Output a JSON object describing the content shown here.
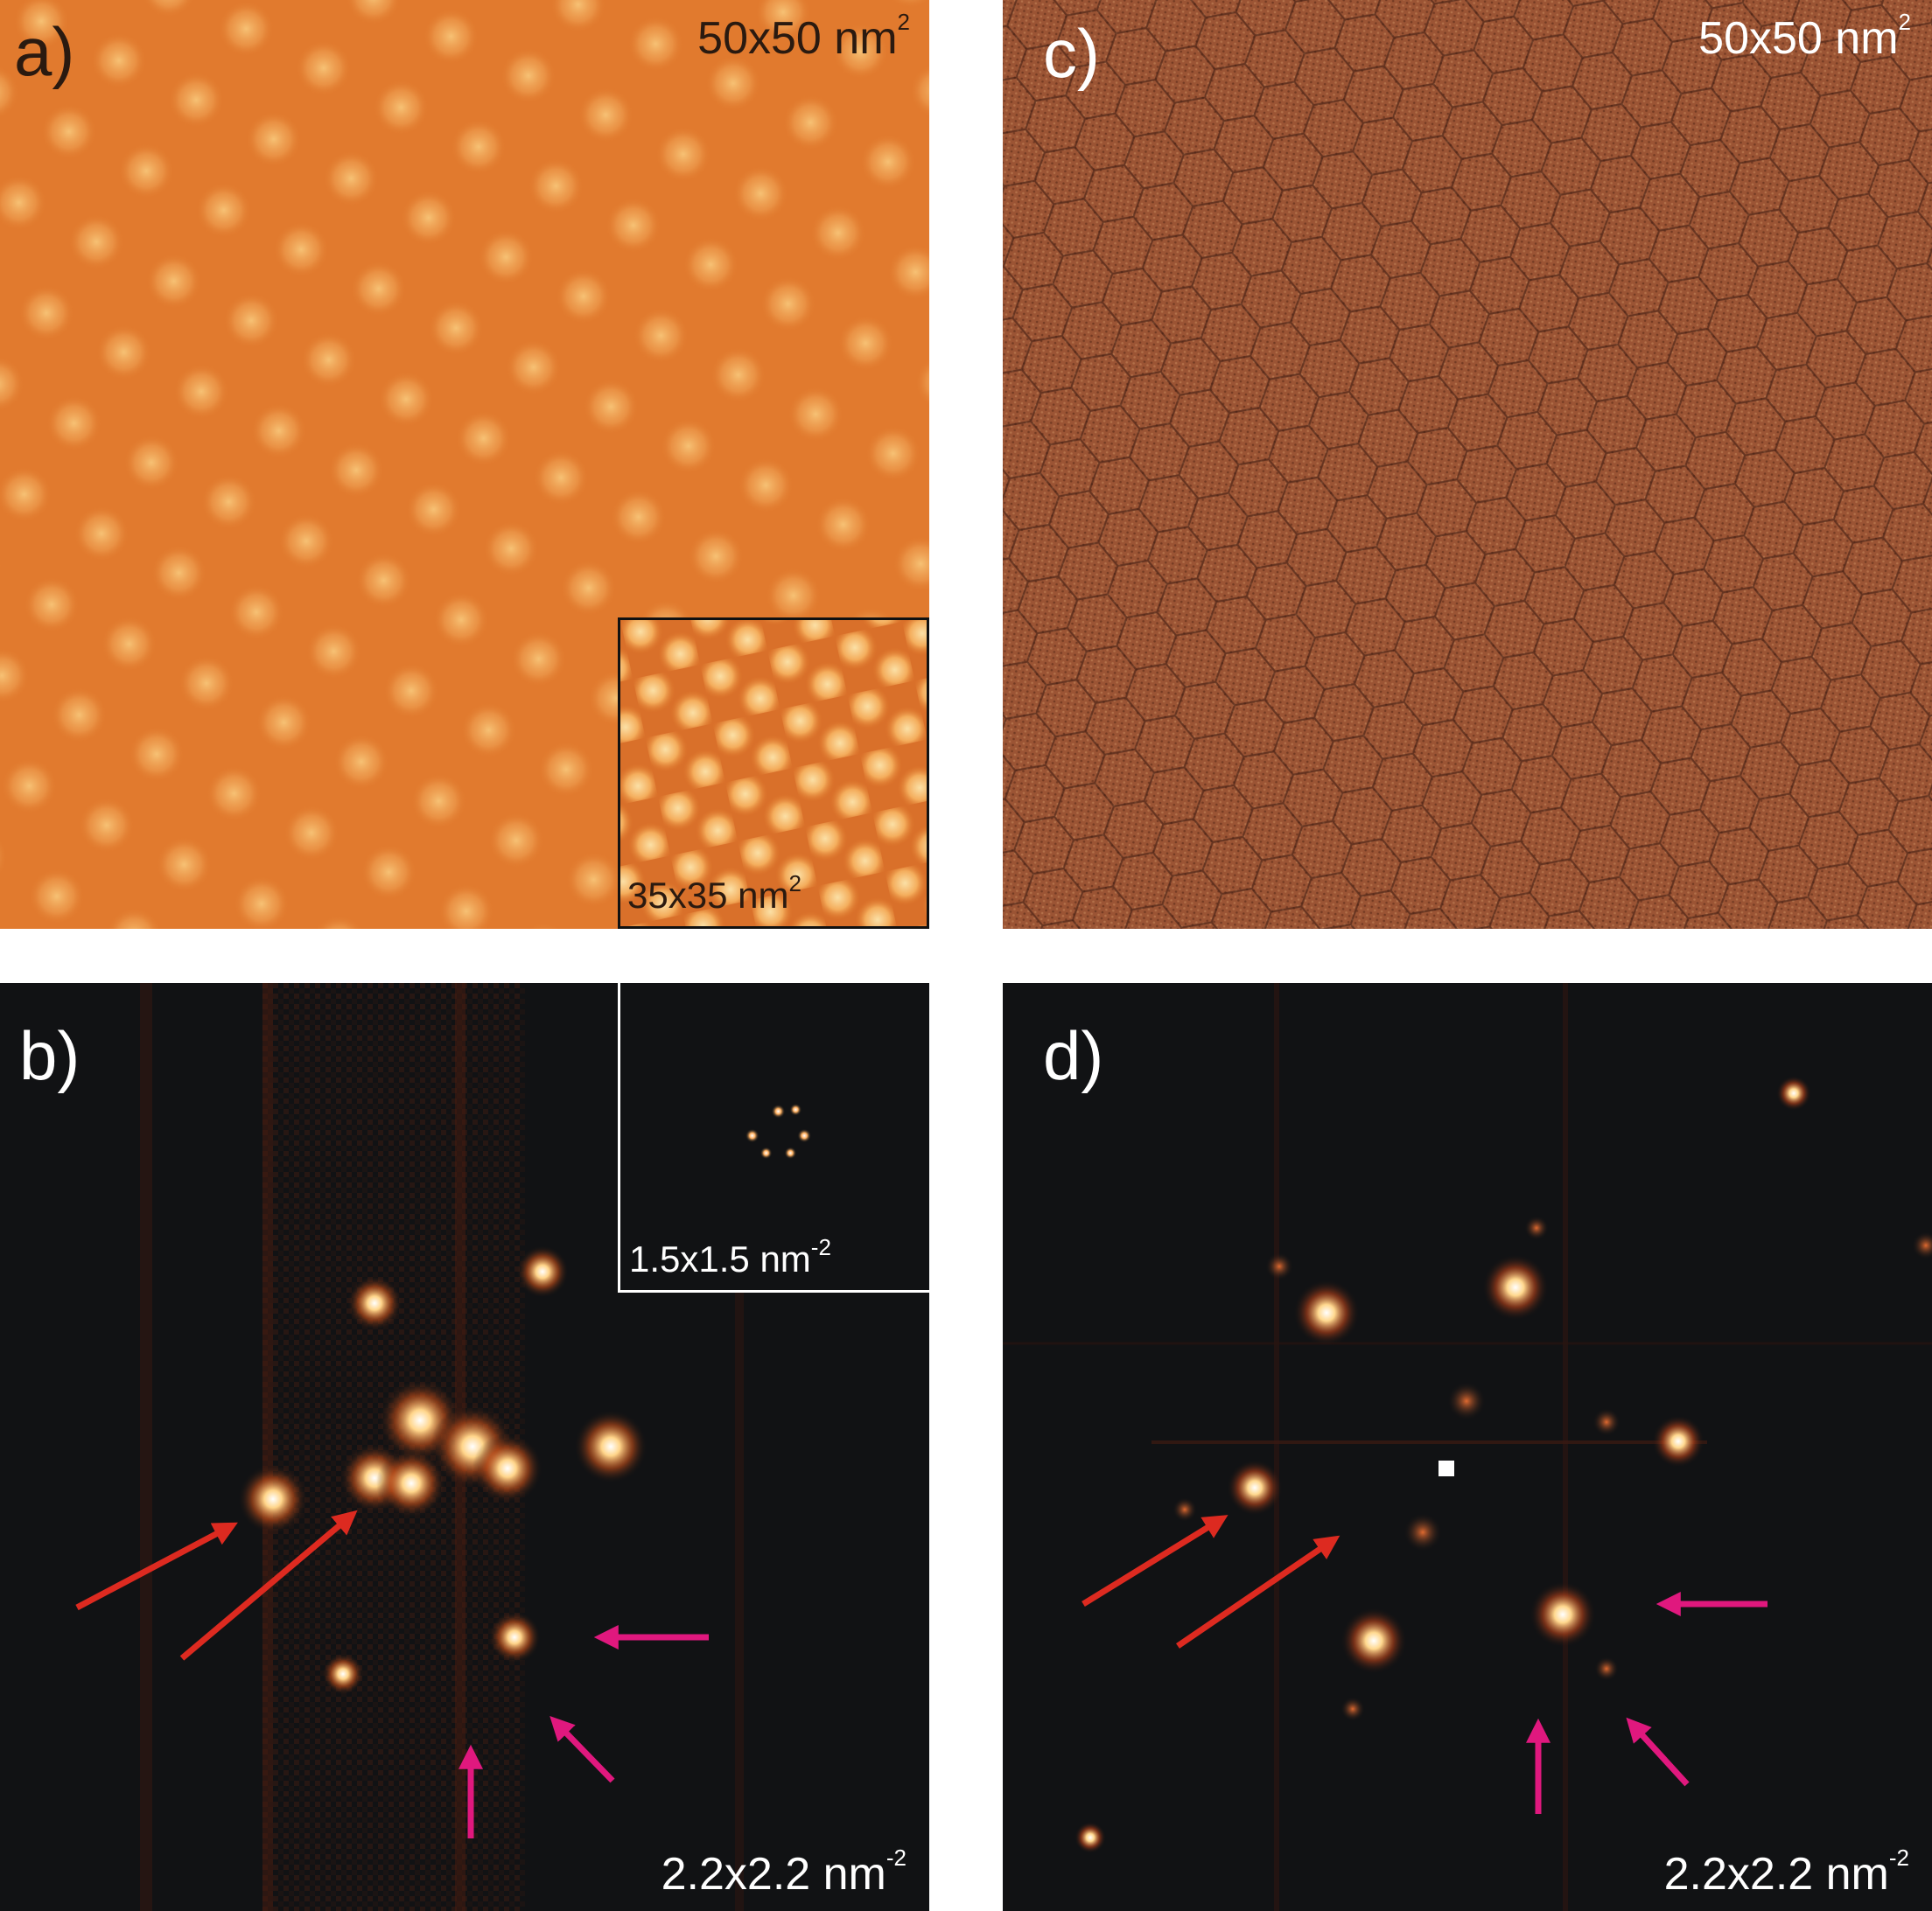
{
  "panels": {
    "a": {
      "letter": "a)",
      "scale_base": "50x50 nm",
      "scale_exp": "2",
      "inset": {
        "scale_base": "35x35 nm",
        "scale_exp": "2"
      }
    },
    "b": {
      "letter": "b)",
      "scale_base": "2.2x2.2 nm",
      "scale_exp": "-2",
      "inset": {
        "scale_base": "1.5x1.5 nm",
        "scale_exp": "-2"
      }
    },
    "c": {
      "letter": "c)",
      "scale_base": "50x50 nm",
      "scale_exp": "2"
    },
    "d": {
      "letter": "d)",
      "scale_base": "2.2x2.2 nm",
      "scale_exp": "-2"
    }
  },
  "colors": {
    "stm_orange": "#e07a2c",
    "stm_highlight": "#f8c77a",
    "stm_brown": "#9a5230",
    "fft_background": "#111214",
    "fft_spot": "#ffe7b0",
    "arrow_red": "#dd2a20",
    "arrow_magenta": "#e0187e"
  }
}
